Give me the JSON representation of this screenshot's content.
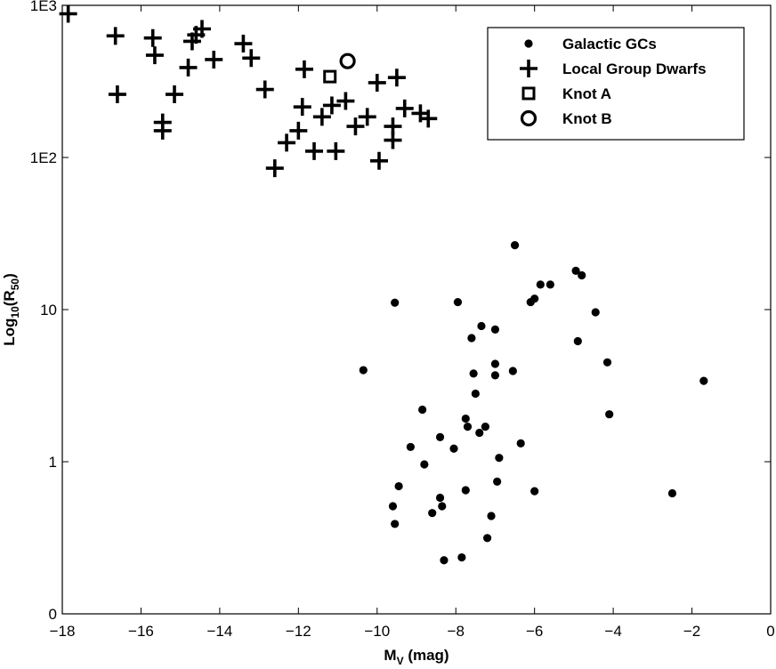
{
  "chart_data": {
    "type": "scatter",
    "title": "",
    "xlabel": {
      "main": "M",
      "sub": "V",
      "rest": " (mag)"
    },
    "ylabel": {
      "main": "Log",
      "sub": "10",
      "mid": "(R",
      "sub2": "50",
      "end": ")"
    },
    "xlim": [
      -18,
      0
    ],
    "ylim": [
      0.1,
      1000
    ],
    "y_scale": "log",
    "x_ticks": [
      -18,
      -16,
      -14,
      -12,
      -10,
      -8,
      -6,
      -4,
      -2,
      0
    ],
    "x_tick_labels": [
      "−18",
      "−16",
      "−14",
      "−12",
      "−10",
      "−8",
      "−6",
      "−4",
      "−2",
      "0"
    ],
    "y_ticks": [
      0.1,
      1,
      10,
      100,
      1000
    ],
    "y_tick_labels": [
      "0",
      "1",
      "10",
      "1E2",
      "1E3"
    ],
    "grid": false,
    "legend_position": "top-right",
    "series": [
      {
        "name": "Galactic GCs",
        "marker": "dot",
        "points": [
          [
            -6.5,
            26.5
          ],
          [
            -4.95,
            18.0
          ],
          [
            -4.8,
            16.8
          ],
          [
            -5.85,
            14.6
          ],
          [
            -5.6,
            14.6
          ],
          [
            -6.0,
            11.8
          ],
          [
            -6.1,
            11.2
          ],
          [
            -7.95,
            11.2
          ],
          [
            -9.55,
            11.1
          ],
          [
            -4.45,
            9.6
          ],
          [
            -7.35,
            7.8
          ],
          [
            -7.0,
            7.4
          ],
          [
            -7.6,
            6.5
          ],
          [
            -4.9,
            6.2
          ],
          [
            -4.15,
            4.5
          ],
          [
            -7.0,
            4.4
          ],
          [
            -10.35,
            4.0
          ],
          [
            -6.55,
            3.95
          ],
          [
            -7.55,
            3.8
          ],
          [
            -7.0,
            3.7
          ],
          [
            -1.7,
            3.4
          ],
          [
            -7.5,
            2.8
          ],
          [
            -8.85,
            2.2
          ],
          [
            -4.1,
            2.05
          ],
          [
            -7.75,
            1.92
          ],
          [
            -7.7,
            1.7
          ],
          [
            -7.25,
            1.7
          ],
          [
            -7.4,
            1.55
          ],
          [
            -8.4,
            1.45
          ],
          [
            -6.35,
            1.32
          ],
          [
            -9.15,
            1.25
          ],
          [
            -8.05,
            1.22
          ],
          [
            -6.9,
            1.06
          ],
          [
            -8.8,
            0.96
          ],
          [
            -6.95,
            0.74
          ],
          [
            -9.45,
            0.69
          ],
          [
            -7.75,
            0.65
          ],
          [
            -6.0,
            0.64
          ],
          [
            -2.5,
            0.62
          ],
          [
            -8.4,
            0.58
          ],
          [
            -9.6,
            0.51
          ],
          [
            -8.35,
            0.51
          ],
          [
            -8.6,
            0.46
          ],
          [
            -7.1,
            0.44
          ],
          [
            -9.55,
            0.39
          ],
          [
            -7.2,
            0.315
          ],
          [
            -7.85,
            0.235
          ],
          [
            -8.3,
            0.225
          ]
        ]
      },
      {
        "name": "Local Group Dwarfs",
        "marker": "plus",
        "points": [
          [
            -17.85,
            880
          ],
          [
            -16.65,
            630
          ],
          [
            -15.7,
            610
          ],
          [
            -14.45,
            700
          ],
          [
            -14.6,
            640
          ],
          [
            -14.7,
            580
          ],
          [
            -13.4,
            560
          ],
          [
            -15.65,
            470
          ],
          [
            -13.2,
            450
          ],
          [
            -14.15,
            440
          ],
          [
            -14.8,
            390
          ],
          [
            -11.85,
            380
          ],
          [
            -9.5,
            335
          ],
          [
            -10.0,
            310
          ],
          [
            -12.85,
            280
          ],
          [
            -16.6,
            260
          ],
          [
            -15.15,
            260
          ],
          [
            -10.8,
            235
          ],
          [
            -11.15,
            220
          ],
          [
            -11.9,
            215
          ],
          [
            -9.3,
            210
          ],
          [
            -8.9,
            195
          ],
          [
            -10.25,
            185
          ],
          [
            -11.4,
            185
          ],
          [
            -8.7,
            180
          ],
          [
            -15.45,
            170
          ],
          [
            -10.55,
            160
          ],
          [
            -9.6,
            160
          ],
          [
            -15.45,
            150
          ],
          [
            -12.0,
            150
          ],
          [
            -9.6,
            130
          ],
          [
            -12.3,
            125
          ],
          [
            -11.6,
            110
          ],
          [
            -11.05,
            110
          ],
          [
            -9.95,
            95
          ],
          [
            -12.6,
            85
          ]
        ]
      },
      {
        "name": "Knot A",
        "marker": "square",
        "points": [
          [
            -11.2,
            340
          ]
        ]
      },
      {
        "name": "Knot B",
        "marker": "circle",
        "points": [
          [
            -10.75,
            430
          ]
        ]
      }
    ]
  }
}
